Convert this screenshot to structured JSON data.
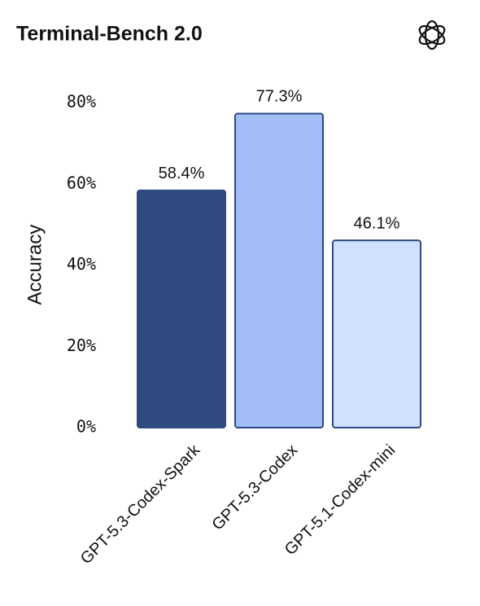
{
  "chart_data": {
    "type": "bar",
    "title": "Terminal-Bench 2.0",
    "y_label": "Accuracy",
    "categories": [
      "GPT-5.3-Codex-Spark",
      "GPT-5.3-Codex",
      "GPT-5.1-Codex-mini"
    ],
    "values": [
      58.4,
      77.3,
      46.1
    ],
    "value_labels": [
      "58.4%",
      "77.3%",
      "46.1%"
    ],
    "colors": [
      "#2e4a80",
      "#a3bdf7",
      "#d0e0ff"
    ],
    "edge_color": "#2e4a80",
    "ylim": [
      0,
      80
    ],
    "yticks": [
      {
        "value": 0,
        "label": "0%"
      },
      {
        "value": 20,
        "label": "20%"
      },
      {
        "value": 40,
        "label": "40%"
      },
      {
        "value": 60,
        "label": "60%"
      },
      {
        "value": 80,
        "label": "80%"
      }
    ],
    "grid": false
  }
}
